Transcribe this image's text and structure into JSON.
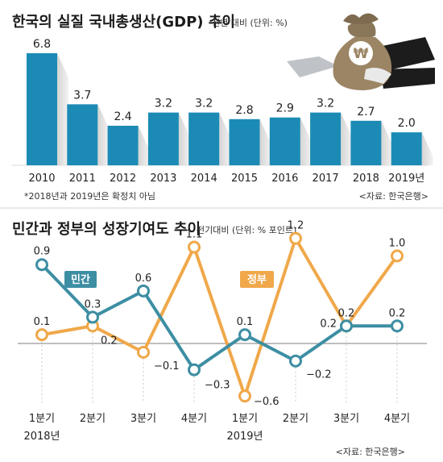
{
  "chart_data": [
    {
      "type": "bar",
      "title": "한국의 실질 국내총생산(GDP) 추이",
      "subtitle": "전년 대비 (단위: %)",
      "categories": [
        "2010",
        "2011",
        "2012",
        "2013",
        "2014",
        "2015",
        "2016",
        "2017",
        "2018",
        "2019년"
      ],
      "values": [
        6.8,
        3.7,
        2.4,
        3.2,
        3.2,
        2.8,
        2.9,
        3.2,
        2.7,
        2.0
      ],
      "value_labels": [
        "6.8",
        "3.7",
        "2.4",
        "3.2",
        "3.2",
        "2.8",
        "2.9",
        "3.2",
        "2.7",
        "2.0"
      ],
      "ylim": [
        0,
        6.8
      ],
      "footnote": "*2018년과 2019년은 확정치 아님",
      "source": "<자료: 한국은행>",
      "bar_color": "#1b8bb5",
      "icon": "money-bag-won-icon",
      "icon_symbol": "₩"
    },
    {
      "type": "line",
      "title": "민간과 정부의 성장기여도 추이",
      "subtitle": "전기대비 (단위: % 포인트)",
      "categories": [
        "1분기",
        "2분기",
        "3분기",
        "4분기",
        "1분기",
        "2분기",
        "3분기",
        "4분기"
      ],
      "year_labels": [
        "2018년",
        "2019년"
      ],
      "series": [
        {
          "name": "민간",
          "color": "#3d8ea3",
          "values": [
            0.9,
            0.3,
            0.6,
            -0.3,
            0.1,
            -0.2,
            0.2,
            0.2
          ],
          "labels": [
            "0.9",
            "0.3",
            "0.6",
            "−0.3",
            "0.1",
            "−0.2",
            "0.2",
            "0.2"
          ]
        },
        {
          "name": "정부",
          "color": "#f0a84a",
          "values": [
            0.1,
            0.2,
            -0.1,
            1.1,
            -0.6,
            1.2,
            0.2,
            1.0
          ],
          "labels": [
            "0.1",
            "0.2",
            "−0.1",
            "1.1",
            "−0.6",
            "1.2",
            "0.2",
            "1.0"
          ]
        }
      ],
      "ylim": [
        -0.6,
        1.2
      ],
      "source": "<자료: 한국은행>"
    }
  ]
}
